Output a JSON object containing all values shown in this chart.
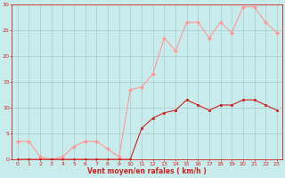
{
  "x": [
    0,
    1,
    2,
    3,
    4,
    5,
    6,
    7,
    8,
    9,
    10,
    11,
    12,
    13,
    14,
    15,
    16,
    17,
    18,
    19,
    20,
    21,
    22,
    23
  ],
  "y_moyen": [
    0,
    0,
    0,
    0,
    0,
    0,
    0,
    0,
    0,
    0,
    0,
    6,
    8,
    9,
    9.5,
    11.5,
    10.5,
    9.5,
    10.5,
    10.5,
    11.5,
    11.5,
    10.5,
    9.5
  ],
  "y_rafales": [
    3.5,
    3.5,
    0.5,
    0,
    0.5,
    2.5,
    3.5,
    3.5,
    2,
    0.5,
    13.5,
    14,
    16.5,
    23.5,
    21,
    26.5,
    26.5,
    23.5,
    26.5,
    24.5,
    29.5,
    29.5,
    26.5,
    24.5
  ],
  "xlim": [
    -0.5,
    23.5
  ],
  "ylim": [
    0,
    30
  ],
  "yticks": [
    0,
    5,
    10,
    15,
    20,
    25,
    30
  ],
  "xticks": [
    0,
    1,
    2,
    3,
    4,
    5,
    6,
    7,
    8,
    9,
    10,
    11,
    12,
    13,
    14,
    15,
    16,
    17,
    18,
    19,
    20,
    21,
    22,
    23
  ],
  "xlabel": "Vent moyen/en rafales ( km/h )",
  "color_moyen": "#cc2222",
  "color_rafales": "#ff9999",
  "bg_color": "#c8ecec",
  "grid_color": "#aacccc",
  "label_color": "#cc2222",
  "tick_color": "#cc2222",
  "spine_color": "#cc2222"
}
